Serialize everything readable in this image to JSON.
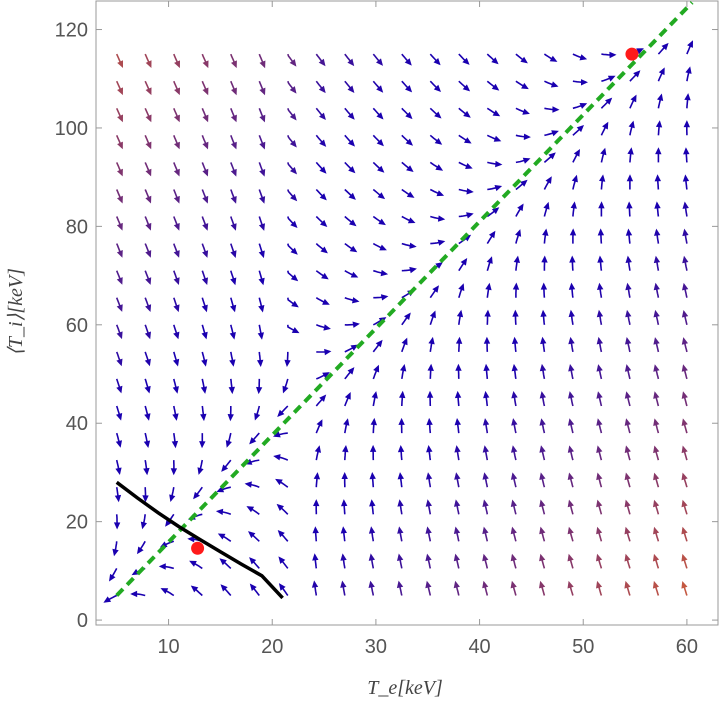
{
  "chart_data": {
    "type": "stream-vector-plot",
    "xlabel": "T_e[keV]",
    "ylabel": "⟨T_i⟩[keV]",
    "xlim": [
      3,
      63
    ],
    "ylim": [
      -1,
      126
    ],
    "xticks": [
      10,
      20,
      30,
      40,
      50,
      60
    ],
    "yticks": [
      0,
      20,
      40,
      60,
      80,
      100,
      120
    ],
    "grid": false,
    "frame": true,
    "field_domain": {
      "x": [
        5,
        60
      ],
      "y": [
        5,
        115
      ]
    },
    "colors": {
      "arrow_low": "#1a00b0",
      "arrow_high": "#e86a2a",
      "separatrix": "#1a00b0",
      "equilibrium_line": "#22aa22",
      "boundary_curve": "#000000",
      "fixed_point": "#ff1a1a",
      "frame": "#999999"
    },
    "series": [
      {
        "name": "",
        "style": "dashed",
        "color": "#22aa22",
        "x": [
          5,
          60.5
        ],
        "y": [
          5,
          125.5
        ]
      },
      {
        "name": "",
        "style": "solid",
        "color": "#000000",
        "x": [
          5,
          7,
          9,
          11,
          13,
          15,
          17,
          19,
          21
        ],
        "y": [
          28,
          24.8,
          21.8,
          19.0,
          16.4,
          13.9,
          11.4,
          9.0,
          4.5
        ]
      }
    ],
    "points": [
      {
        "x": 12.8,
        "y": 14.6,
        "color": "#ff1a1a"
      },
      {
        "x": 54.7,
        "y": 115,
        "color": "#ff1a1a"
      }
    ]
  }
}
